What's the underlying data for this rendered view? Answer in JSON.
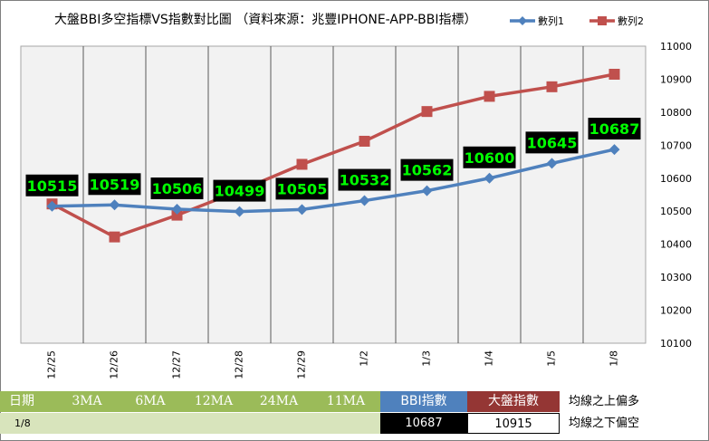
{
  "chart_data": {
    "type": "line",
    "title": "大盤BBI多空指標VS指數對比圖 （資料來源：兆豐IPHONE-APP-BBI指標）",
    "categories": [
      "12/25",
      "12/26",
      "12/27",
      "12/28",
      "12/29",
      "1/2",
      "1/3",
      "1/4",
      "1/5",
      "1/8"
    ],
    "series": [
      {
        "name": "數列1",
        "color": "#4f81bd",
        "marker": "diamond",
        "values": [
          10515,
          10519,
          10506,
          10499,
          10505,
          10532,
          10562,
          10600,
          10645,
          10687
        ]
      },
      {
        "name": "數列2",
        "color": "#c0504d",
        "marker": "square",
        "values": [
          10522,
          10422,
          10488,
          10562,
          10642,
          10712,
          10802,
          10848,
          10877,
          10915
        ]
      }
    ],
    "ylim": [
      10100,
      11000
    ],
    "yticks": [
      10100,
      10200,
      10300,
      10400,
      10500,
      10600,
      10700,
      10800,
      10900,
      11000
    ],
    "y_axis_side": "right",
    "grid": "vertical",
    "data_labels_series": "數列1",
    "data_label_colors": {
      "background": "#000000",
      "text": "#00ff00"
    },
    "legend_position": "top-right"
  },
  "table": {
    "header": {
      "date_label": "日期",
      "ma_labels": [
        "3MA",
        "6MA",
        "12MA",
        "24MA",
        "11MA"
      ],
      "bbi_label": "BBI指數",
      "index_label": "大盤指數",
      "note_above": "均線之上偏多"
    },
    "row": {
      "date": "1/8",
      "bbi_value": "10687",
      "index_value": "10915",
      "note_below": "均線之下偏空"
    }
  }
}
